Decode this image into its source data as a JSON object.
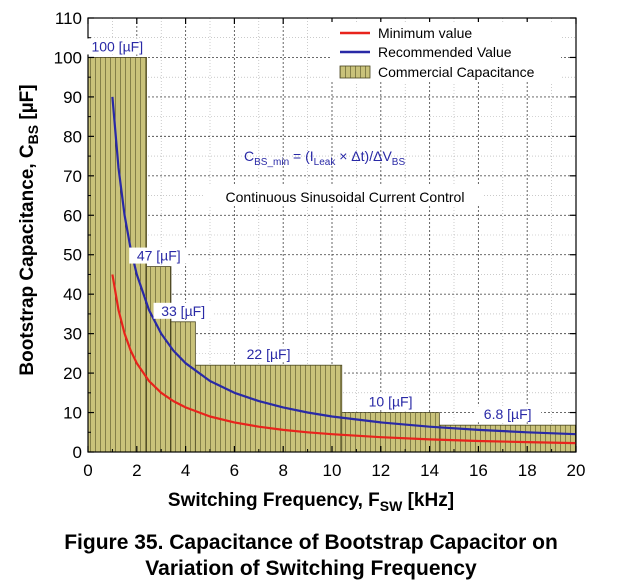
{
  "chart_data": {
    "type": "line",
    "ylabel_main": "Bootstrap Capacitance, C",
    "ylabel_sub": "BS",
    "ylabel_unit": " [µF]",
    "xlabel_main": "Switching Frequency, F",
    "xlabel_sub": "SW",
    "xlabel_unit": " [kHz]",
    "xlim": [
      0,
      20
    ],
    "ylim": [
      0,
      110
    ],
    "xticks": [
      0,
      2,
      4,
      6,
      8,
      10,
      12,
      14,
      16,
      18,
      20
    ],
    "yticks": [
      0,
      10,
      20,
      30,
      40,
      50,
      60,
      70,
      80,
      90,
      100,
      110
    ],
    "xtick_labels": [
      "0",
      "2",
      "4",
      "6",
      "8",
      "10",
      "12",
      "14",
      "16",
      "18",
      "20"
    ],
    "ytick_labels": [
      "0",
      "10",
      "20",
      "30",
      "40",
      "50",
      "60",
      "70",
      "80",
      "90",
      "100",
      "110"
    ],
    "grid": true,
    "legend_position": "top-right",
    "series": [
      {
        "name": "Minimum value",
        "color": "#e8231c",
        "x": [
          1,
          1.25,
          1.5,
          1.75,
          2,
          2.5,
          3,
          3.5,
          4,
          5,
          6,
          7,
          8,
          9,
          10,
          12,
          14,
          16,
          18,
          20
        ],
        "values": [
          45,
          36,
          30,
          25.7,
          22.5,
          18,
          15,
          12.9,
          11.3,
          9,
          7.5,
          6.4,
          5.6,
          5,
          4.5,
          3.75,
          3.2,
          2.8,
          2.5,
          2.25
        ]
      },
      {
        "name": "Recommended Value",
        "color": "#2929a6",
        "x": [
          1,
          1.25,
          1.5,
          1.75,
          2,
          2.5,
          3,
          3.5,
          4,
          5,
          6,
          7,
          8,
          9,
          10,
          12,
          14,
          16,
          18,
          20
        ],
        "values": [
          90,
          72,
          60,
          51.4,
          45,
          36,
          30,
          25.7,
          22.5,
          18,
          15,
          12.9,
          11.3,
          10,
          9,
          7.5,
          6.4,
          5.6,
          5,
          4.5
        ]
      }
    ],
    "commercial_capacitance": {
      "name": "Commercial Capacitance",
      "fill": "#c9c27a",
      "bars": [
        {
          "x0": 0,
          "x1": 2.4,
          "value": 100,
          "label": "100 [µF]"
        },
        {
          "x0": 2.4,
          "x1": 3.4,
          "value": 47,
          "label": "47 [µF]"
        },
        {
          "x0": 3.4,
          "x1": 4.4,
          "value": 33,
          "label": "33 [µF]"
        },
        {
          "x0": 4.4,
          "x1": 10.4,
          "value": 22,
          "label": "22 [µF]"
        },
        {
          "x0": 10.4,
          "x1": 14.4,
          "value": 10,
          "label": "10 [µF]"
        },
        {
          "x0": 14.4,
          "x1": 20,
          "value": 6.8,
          "label": "6.8 [µF]"
        }
      ]
    },
    "annotations": {
      "formula_lhs": "C",
      "formula_lhs_sub": "BS_min",
      "formula_eq": " = (I",
      "formula_i_sub": "Leak",
      "formula_mid": " × Δt)/ΔV",
      "formula_v_sub": "BS",
      "control": "Continuous Sinusoidal Current Control",
      "formula_color": "#2929a6",
      "label_color": "#2929a6"
    }
  },
  "caption": {
    "line1": "Figure 35. Capacitance of Bootstrap Capacitor on",
    "line2": "Variation of Switching Frequency"
  }
}
